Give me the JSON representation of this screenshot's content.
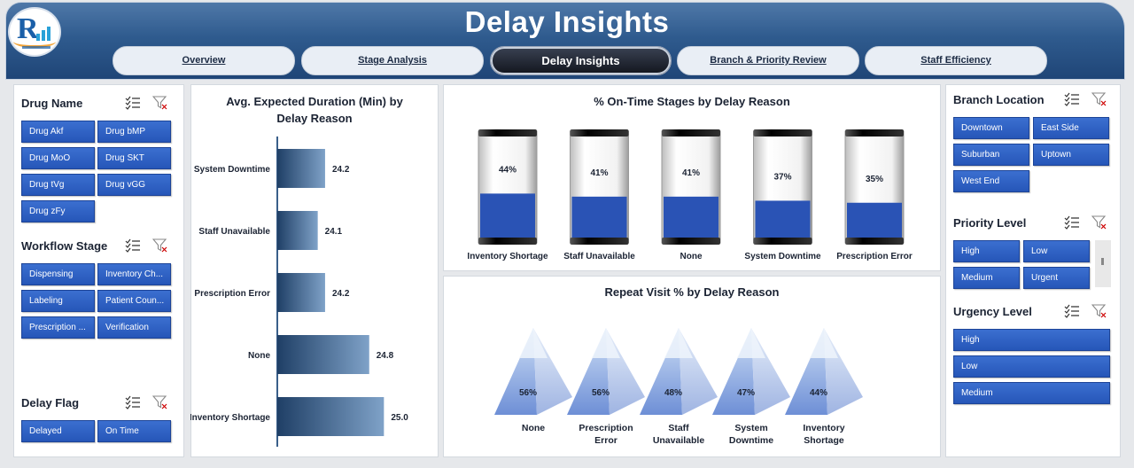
{
  "header": {
    "title": "Delay Insights",
    "tabs": [
      "Overview",
      "Stage Analysis",
      "Delay Insights",
      "Branch & Priority Review",
      "Staff Efficiency"
    ],
    "active_tab": "Delay Insights"
  },
  "slicers": {
    "drug_name": {
      "title": "Drug Name",
      "items": [
        "Drug Akf",
        "Drug bMP",
        "Drug MoO",
        "Drug SKT",
        "Drug tVg",
        "Drug vGG",
        "Drug zFy"
      ]
    },
    "workflow_stage": {
      "title": "Workflow Stage",
      "items": [
        "Dispensing",
        "Inventory Ch...",
        "Labeling",
        "Patient Coun...",
        "Prescription ...",
        "Verification"
      ]
    },
    "delay_flag": {
      "title": "Delay Flag",
      "items": [
        "Delayed",
        "On Time"
      ]
    },
    "branch_location": {
      "title": "Branch Location",
      "items": [
        "Downtown",
        "East Side",
        "Suburban",
        "Uptown",
        "West End"
      ]
    },
    "priority_level": {
      "title": "Priority Level",
      "items": [
        "High",
        "Low",
        "Medium",
        "Urgent"
      ]
    },
    "urgency_level": {
      "title": "Urgency Level",
      "items": [
        "High",
        "Low",
        "Medium"
      ]
    }
  },
  "icons": {
    "multi_select": "multi-select-icon",
    "clear_filter": "clear-filter-icon"
  },
  "colors": {
    "accent": "#2656b8",
    "header": "#2f5b8e",
    "bar_dark": "#1f3f66",
    "bar_light": "#7fa2c8"
  },
  "chart_data": [
    {
      "type": "bar",
      "title": "Avg. Expected Duration (Min) by Delay Reason",
      "categories": [
        "System Downtime",
        "Staff Unavailable",
        "Prescription Error",
        "None",
        "Inventory Shortage"
      ],
      "values": [
        24.2,
        24.1,
        24.2,
        24.8,
        25.0
      ],
      "labels": [
        "24.2",
        "24.1",
        "24.2",
        "24.8",
        "25.0"
      ],
      "orientation": "horizontal"
    },
    {
      "type": "bar",
      "title": "% On-Time Stages by Delay Reason",
      "categories": [
        "Inventory Shortage",
        "Staff Unavailable",
        "None",
        "System Downtime",
        "Prescription Error"
      ],
      "values": [
        44,
        41,
        41,
        37,
        35
      ],
      "labels": [
        "44%",
        "41%",
        "41%",
        "37%",
        "35%"
      ]
    },
    {
      "type": "bar",
      "title": "Repeat Visit % by Delay Reason",
      "categories": [
        "None",
        "Prescription Error",
        "Staff Unavailable",
        "System Downtime",
        "Inventory Shortage"
      ],
      "values": [
        56,
        56,
        48,
        47,
        44
      ],
      "labels": [
        "56%",
        "56%",
        "48%",
        "47%",
        "44%"
      ]
    }
  ]
}
